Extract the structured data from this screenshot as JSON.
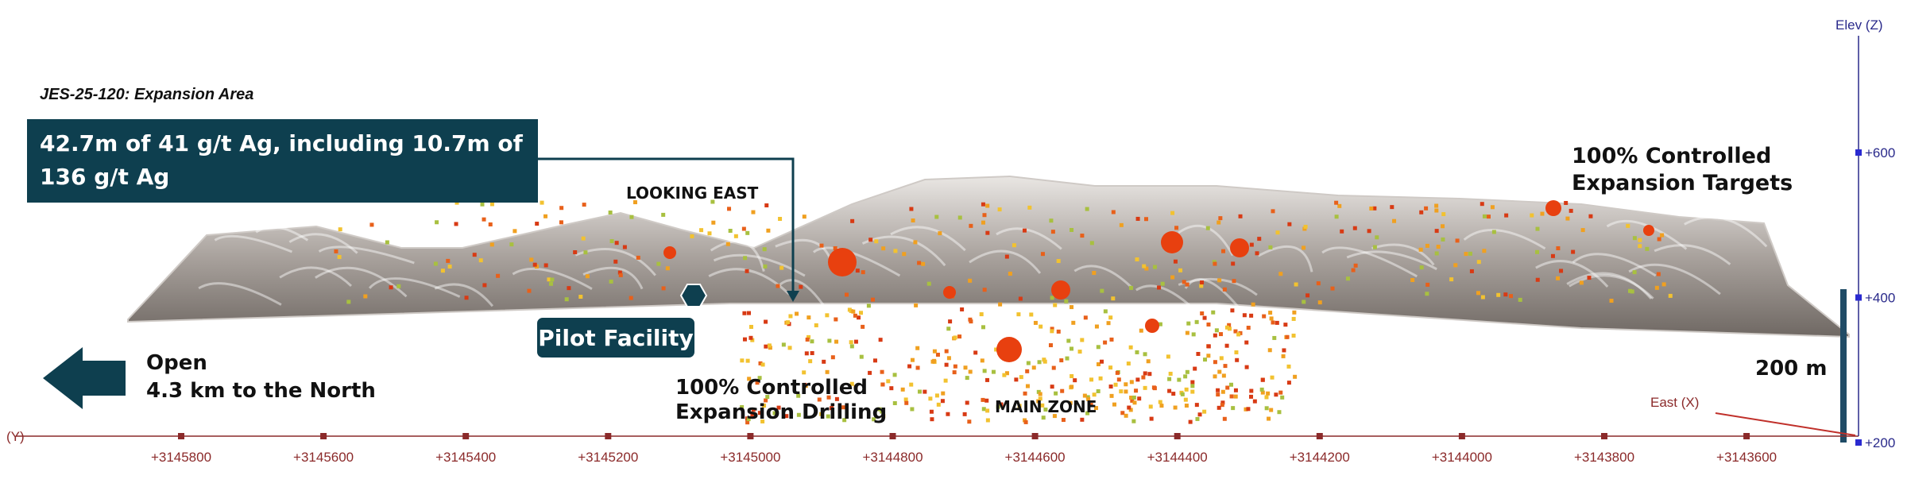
{
  "header": {
    "title": "JES-25-120: Expansion Area"
  },
  "callout": {
    "lines": [
      "42.7m of 41 g/t Ag, including 10.7m of",
      "136 g/t Ag"
    ]
  },
  "labels": {
    "view": "LOOKING EAST",
    "targets": [
      "100% Controlled",
      "Expansion Targets"
    ],
    "facility": "Pilot Facility",
    "open": [
      "Open",
      "4.3 km to the North"
    ],
    "drilling": [
      "100% Controlled",
      "Expansion Drilling"
    ],
    "main_zone": "MAIN ZONE",
    "scale": "200 m"
  },
  "axes": {
    "y_axis_label": "(Y)",
    "y_ticks": [
      "+3145800",
      "+3145600",
      "+3145400",
      "+3145200",
      "+3145000",
      "+3144800",
      "+3144600",
      "+3144400",
      "+3144200",
      "+3144000",
      "+3143800",
      "+3143600"
    ],
    "x_axis_label": "East (X)",
    "z_axis_label": "Elev (Z)",
    "z_ticks": [
      "+600",
      "+400",
      "+200"
    ]
  }
}
